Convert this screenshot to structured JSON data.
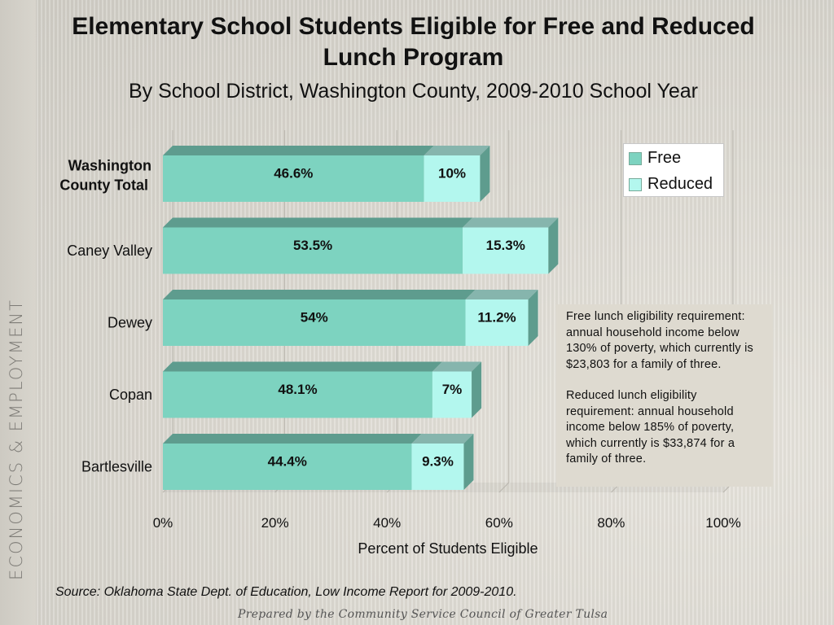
{
  "side_label": "ECONOMICS & EMPLOYMENT",
  "source": "Source:  Oklahoma State Dept. of Education, Low Income Report for 2009-2010.",
  "prepared_by": "Prepared by the Community Service Council of Greater Tulsa",
  "note": {
    "free": "Free lunch eligibility requirement:  annual household income below 130% of poverty, which currently is $23,803 for a family of three.",
    "reduced": "Reduced lunch eligibility requirement:  annual household income below 185% of poverty, which currently is $33,874 for a family of three."
  },
  "colors": {
    "free": "#7dd3c0",
    "free_dark": "#5e9c8e",
    "reduced": "#b3f7ee",
    "reduced_dark": "#86b5ad"
  },
  "chart_data": {
    "type": "bar",
    "orientation": "horizontal",
    "stacked": true,
    "title": "Elementary School Students Eligible for Free and Reduced Lunch Program",
    "subtitle": "By School District, Washington County, 2009-2010 School Year",
    "xlabel": "Percent of Students Eligible",
    "ylabel": "",
    "xlim": [
      0,
      100
    ],
    "xticks": [
      "0%",
      "20%",
      "40%",
      "60%",
      "80%",
      "100%"
    ],
    "grid": true,
    "legend": "top-right",
    "categories": [
      "Washington County Total",
      "Caney Valley",
      "Dewey",
      "Copan",
      "Bartlesville"
    ],
    "category_lines": [
      [
        "Washington",
        "County Total"
      ],
      [
        "Caney Valley"
      ],
      [
        "Dewey"
      ],
      [
        "Copan"
      ],
      [
        "Bartlesville"
      ]
    ],
    "series": [
      {
        "name": "Free",
        "values": [
          46.6,
          53.5,
          54,
          48.1,
          44.4
        ],
        "labels": [
          "46.6%",
          "53.5%",
          "54%",
          "48.1%",
          "44.4%"
        ]
      },
      {
        "name": "Reduced",
        "values": [
          10,
          15.3,
          11.2,
          7,
          9.3
        ],
        "labels": [
          "10%",
          "15.3%",
          "11.2%",
          "7%",
          "9.3%"
        ]
      }
    ]
  }
}
